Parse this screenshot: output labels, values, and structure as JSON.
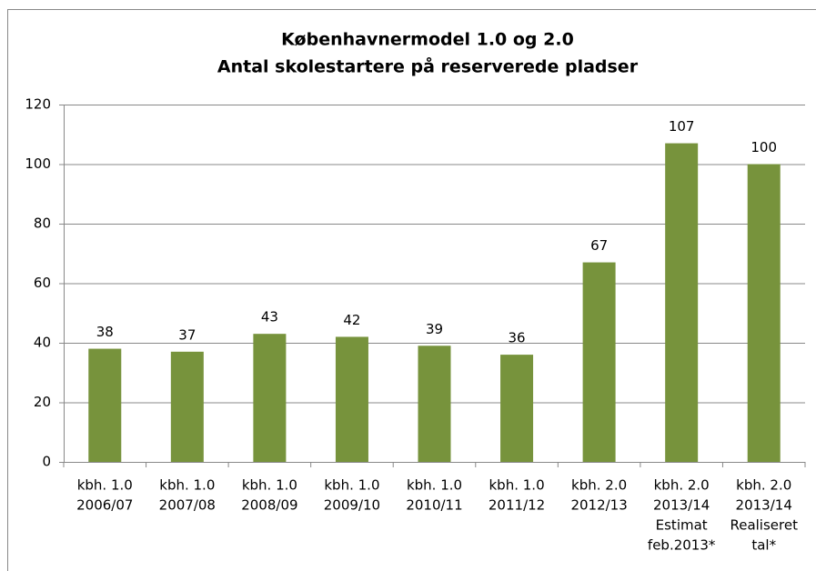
{
  "chart_data": {
    "type": "bar",
    "title": "Københavnermodel 1.0 og 2.0",
    "subtitle": "Antal skolestartere på reserverede pladser",
    "categories": [
      [
        "kbh. 1.0",
        "2006/07"
      ],
      [
        "kbh. 1.0",
        "2007/08"
      ],
      [
        "kbh. 1.0",
        "2008/09"
      ],
      [
        "kbh. 1.0",
        "2009/10"
      ],
      [
        "kbh. 1.0",
        "2010/11"
      ],
      [
        "kbh. 1.0",
        "2011/12"
      ],
      [
        "kbh. 2.0",
        "2012/13"
      ],
      [
        "kbh. 2.0",
        "2013/14",
        "Estimat",
        "feb.2013*"
      ],
      [
        "kbh. 2.0",
        "2013/14",
        "Realiseret",
        "tal*"
      ]
    ],
    "values": [
      38,
      37,
      43,
      42,
      39,
      36,
      67,
      107,
      100
    ],
    "color": "#77933c",
    "ylim": [
      0,
      120
    ],
    "yticks": [
      0,
      20,
      40,
      60,
      80,
      100,
      120
    ],
    "grid": true
  }
}
